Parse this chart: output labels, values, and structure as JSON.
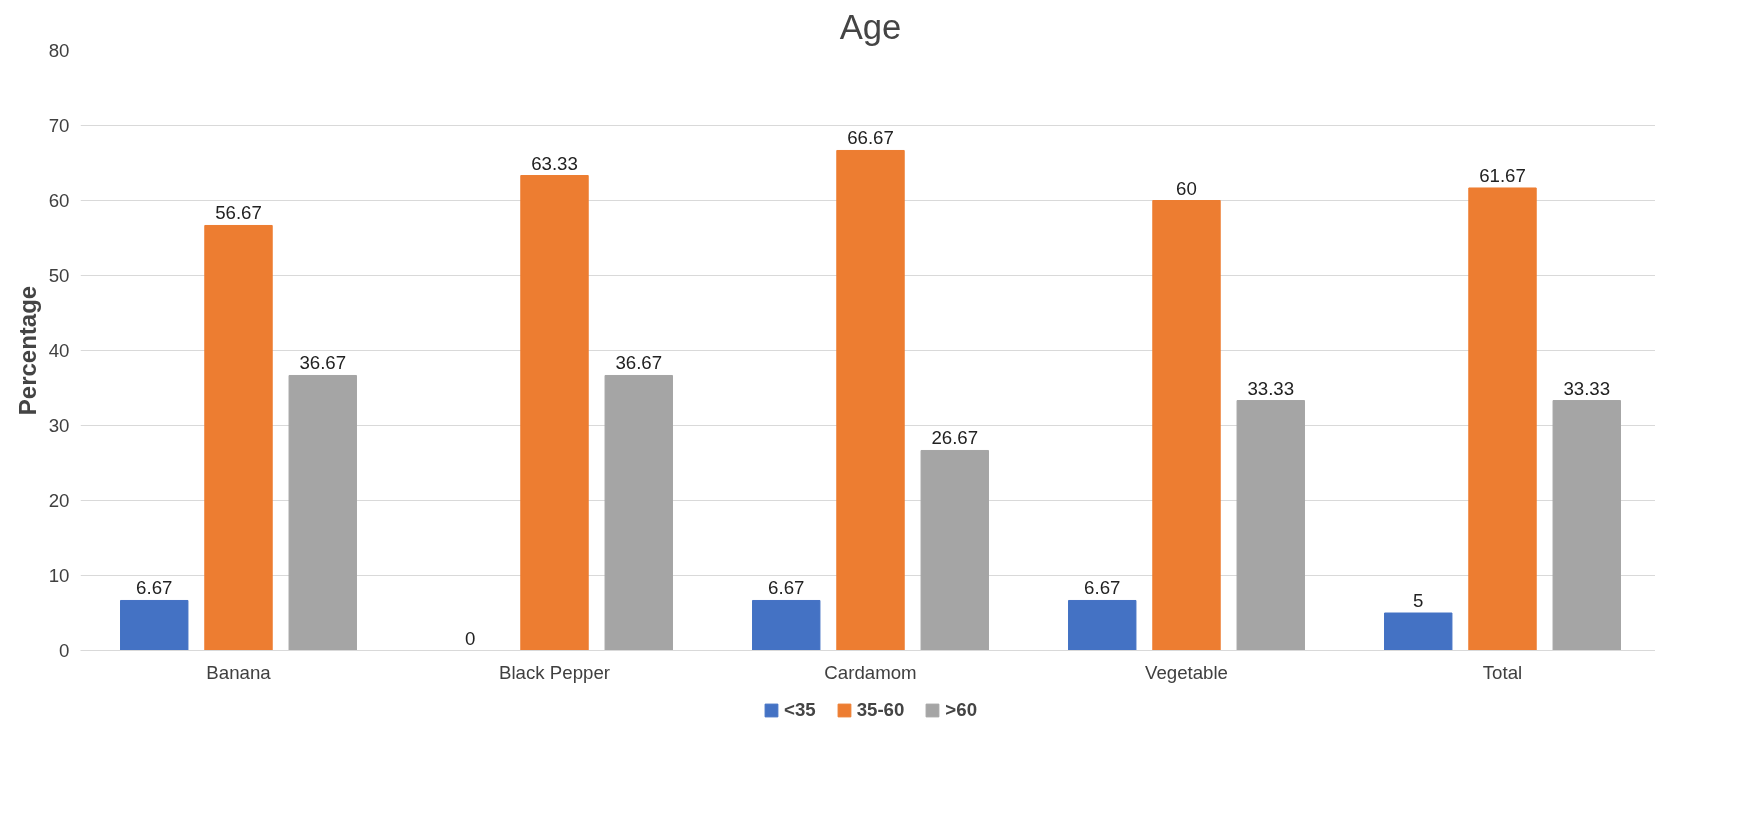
{
  "chart_data": {
    "type": "bar",
    "title": "Age",
    "ylabel": "Percentage",
    "categories": [
      "Banana",
      "Black Pepper",
      "Cardamom",
      "Vegetable",
      "Total"
    ],
    "series": [
      {
        "name": "<35",
        "color": "#4472c4",
        "values": [
          6.67,
          0,
          6.67,
          6.67,
          5
        ]
      },
      {
        "name": "35-60",
        "color": "#ed7d31",
        "values": [
          56.67,
          63.33,
          66.67,
          60,
          61.67
        ]
      },
      {
        "name": ">60",
        "color": "#a5a5a5",
        "values": [
          36.67,
          36.67,
          26.67,
          33.33,
          33.33
        ]
      }
    ],
    "ylim": [
      0,
      80
    ],
    "yticks": [
      0,
      10,
      20,
      30,
      40,
      50,
      60,
      70,
      80
    ],
    "grid": "y",
    "legend": "bottom",
    "data_labels": true
  }
}
